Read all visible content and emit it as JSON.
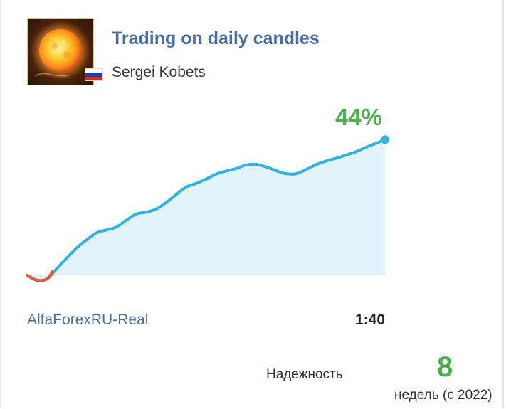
{
  "signal": {
    "title": "Trading on daily candles",
    "author": "Sergei Kobets",
    "avatar_icon": "sun-avatar-icon",
    "flag_icon": "russia-flag-icon",
    "flag_colors": [
      "#ffffff",
      "#1c3fa8",
      "#d52b1e"
    ],
    "growth": "44%",
    "broker": "AlfaForexRU-Real",
    "leverage": "1:40",
    "reliability_label": "Надежность",
    "weeks": "8",
    "weeks_label": "недель (с 2022)"
  },
  "colors": {
    "title": "#4a6da7",
    "growth": "#4caf50",
    "line": "#2fb3e4",
    "negative": "#e4593a",
    "area": "#e3f3fc"
  },
  "chart_data": {
    "type": "area",
    "x": [
      0,
      1,
      2,
      3,
      4,
      5,
      6,
      7,
      8,
      9,
      10,
      11,
      12,
      13,
      14,
      15,
      16,
      17,
      18,
      19,
      20,
      21,
      22,
      23,
      24,
      25,
      26,
      27,
      28,
      29,
      30,
      31,
      32,
      33,
      34,
      35,
      36
    ],
    "y": [
      0.0,
      -1.6,
      -1.2,
      2.2,
      5.6,
      8.9,
      11.5,
      13.8,
      14.7,
      15.7,
      17.9,
      19.9,
      20.5,
      21.5,
      23.6,
      26.2,
      28.6,
      29.8,
      31.2,
      32.8,
      33.8,
      34.6,
      35.8,
      36.0,
      35.2,
      34.0,
      33.0,
      32.9,
      34.2,
      35.8,
      37.0,
      37.9,
      38.9,
      40.0,
      41.4,
      42.7,
      44.0
    ],
    "negative_segment_end_index": 2,
    "ylim": [
      -3,
      45
    ],
    "grid": false,
    "final_label": "44%"
  }
}
